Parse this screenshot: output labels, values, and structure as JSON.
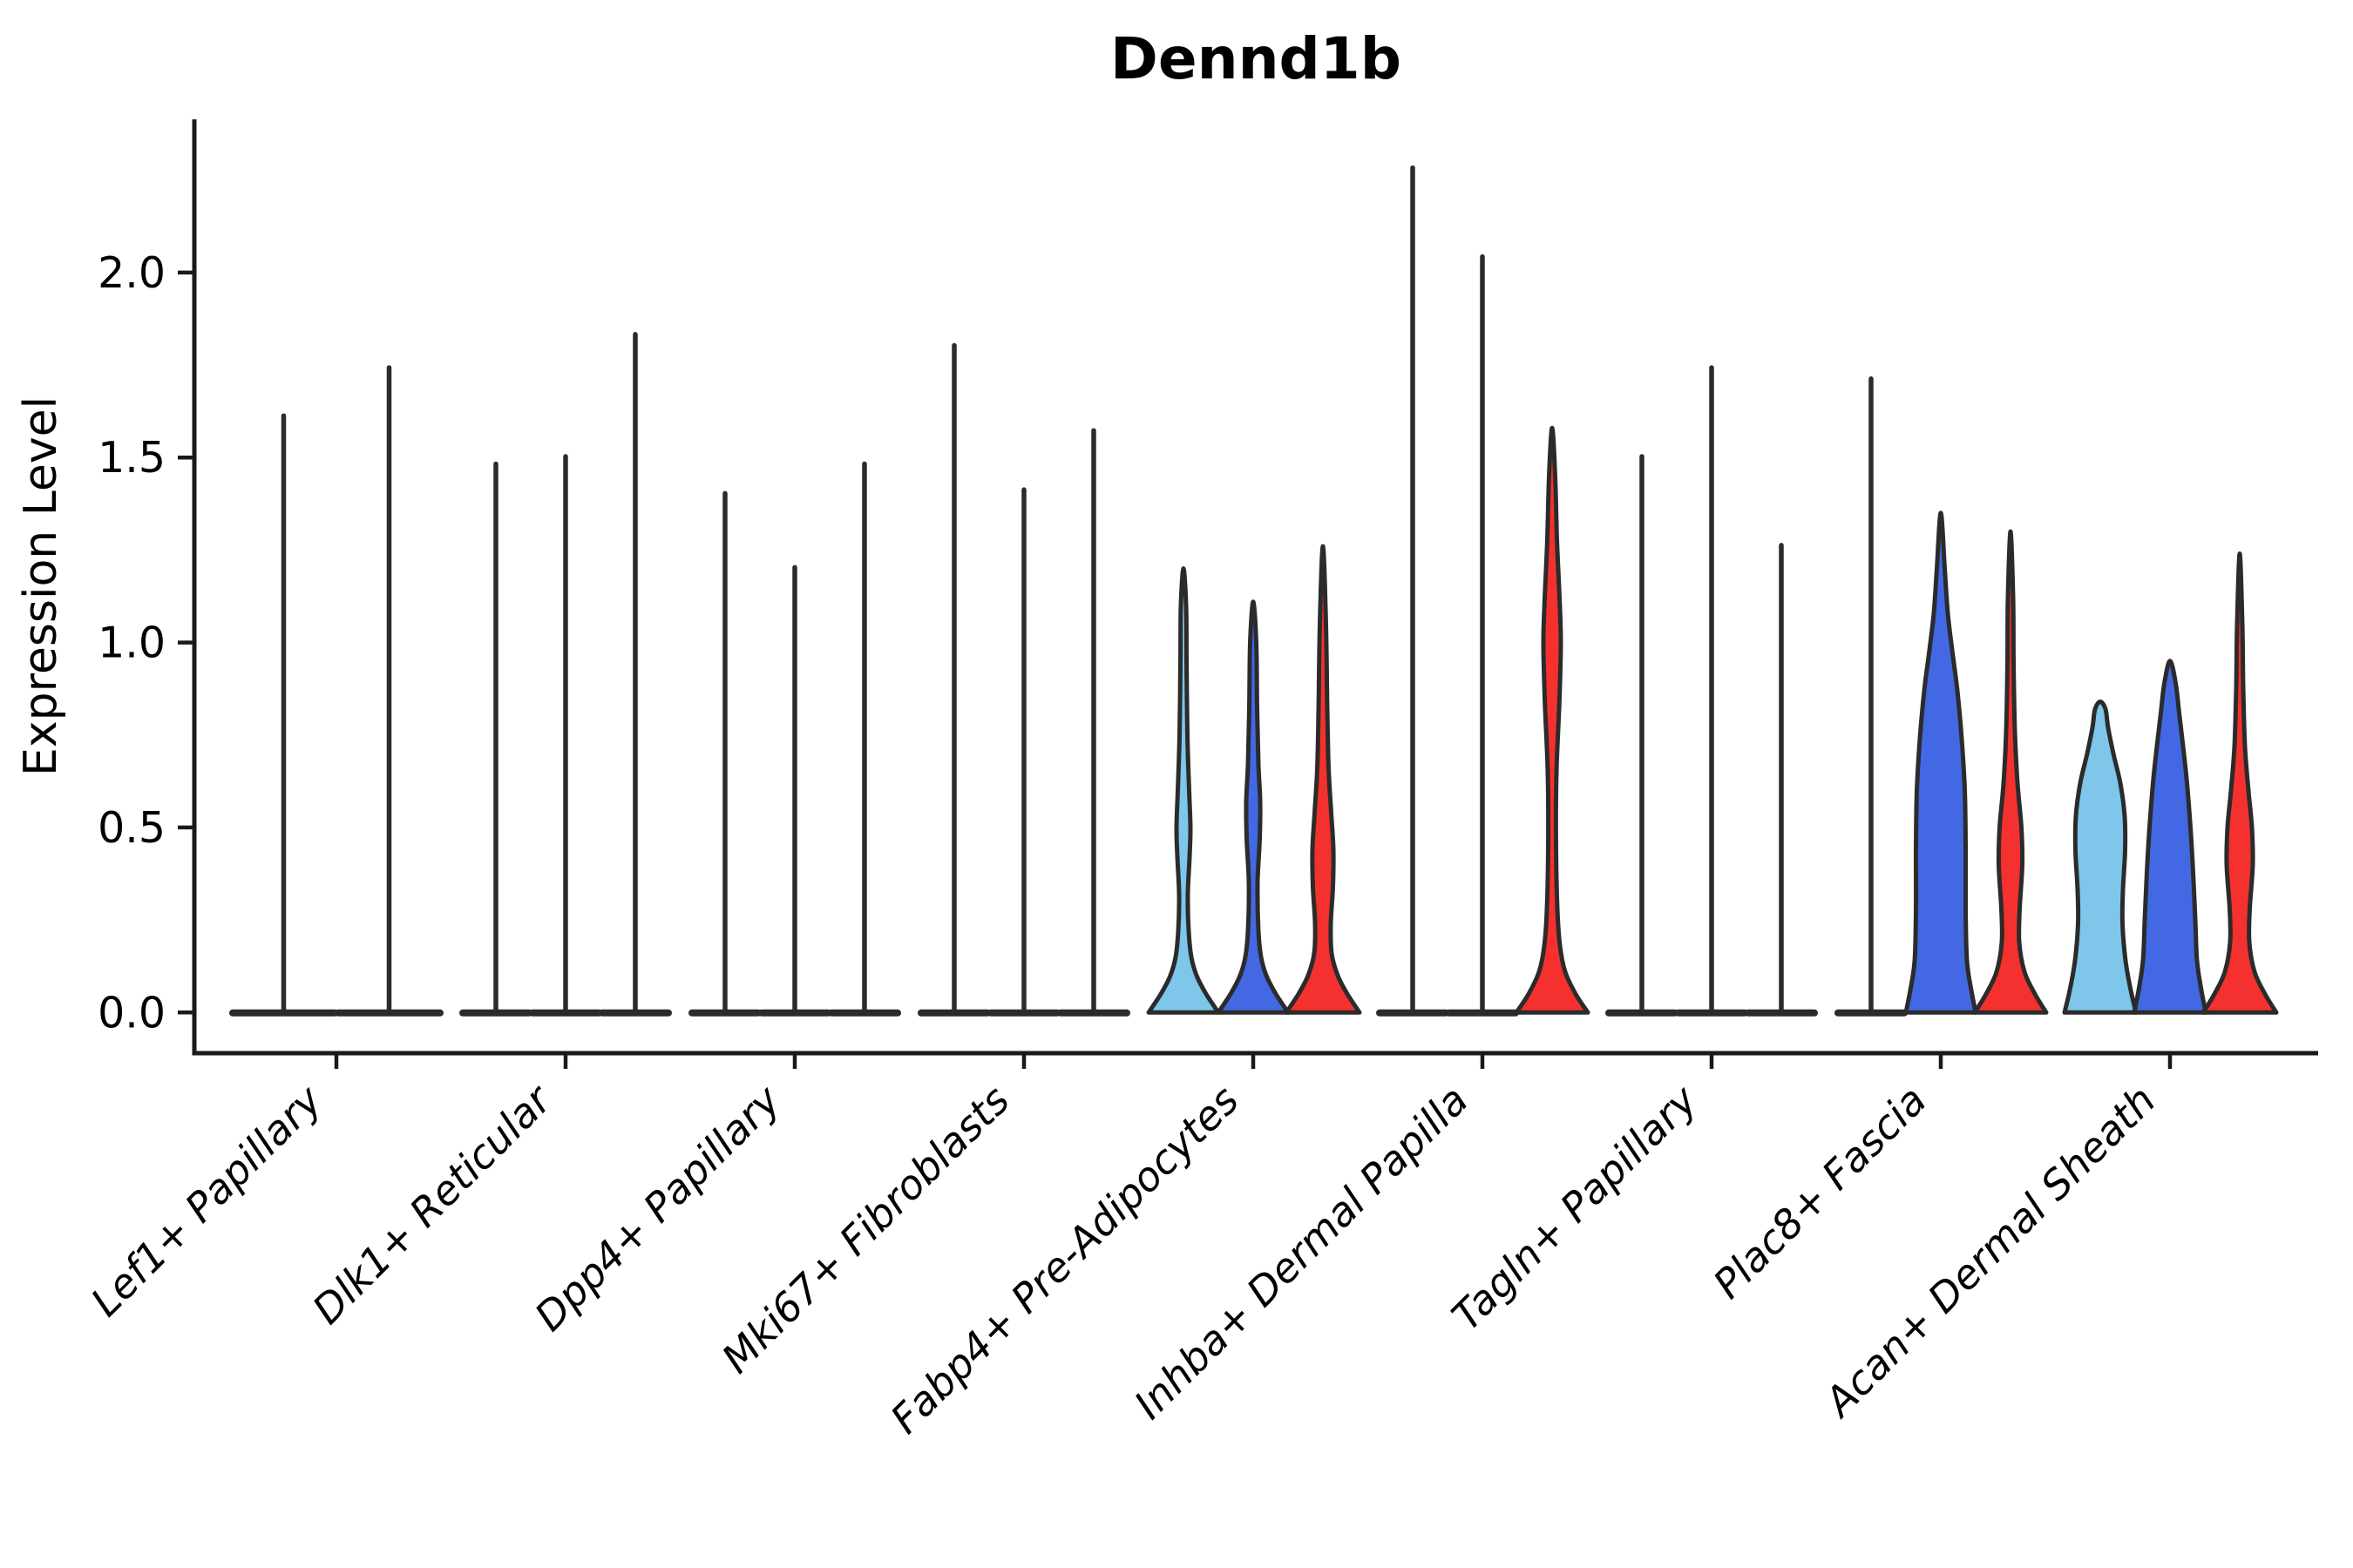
{
  "title": "Dennd1b",
  "colors": {
    "background": "#ffffff",
    "axis": "#1a1a1a",
    "text": "#000000",
    "violin_outline": "#2b2b2b",
    "light_blue": "#7ec6ea",
    "blue": "#4268e4",
    "red": "#f4312e"
  },
  "chart_data": {
    "type": "violin",
    "title": "Dennd1b",
    "xlabel": "",
    "ylabel": "Expression Level",
    "ylim": [
      -0.11,
      2.41
    ],
    "grid": false,
    "legend": "none",
    "yticks": [
      {
        "value": 0.0,
        "label": "0.0"
      },
      {
        "value": 0.5,
        "label": "0.5"
      },
      {
        "value": 1.0,
        "label": "1.0"
      },
      {
        "value": 1.5,
        "label": "1.5"
      },
      {
        "value": 2.0,
        "label": "2.0"
      }
    ],
    "categories": [
      "Lef1+ Papillary",
      "Dlk1+ Reticular",
      "Dpp4+ Papillary",
      "Mki67+ Fibroblasts",
      "Fabp4+ Pre-Adipocytes",
      "Inhba+ Dermal Papilla",
      "Tagln+ Papillary",
      "Plac8+ Fascia",
      "Acan+ Dermal Sheath"
    ],
    "note": "Most violins collapse to a flat base at 0 with a thin spike to the max expression value; style=spike means near-zero-width dark violin, style=body means visible colored violin. profile = [expression_value, half_width_px] pairs.",
    "groups": [
      {
        "category": "Lef1+ Papillary",
        "violins": [
          {
            "style": "spike",
            "max": 1.62
          },
          {
            "style": "spike",
            "max": 1.75
          }
        ]
      },
      {
        "category": "Dlk1+ Reticular",
        "violins": [
          {
            "style": "spike",
            "max": 1.49
          },
          {
            "style": "spike",
            "max": 1.51
          },
          {
            "style": "spike",
            "max": 1.84
          }
        ]
      },
      {
        "category": "Dpp4+ Papillary",
        "violins": [
          {
            "style": "spike",
            "max": 1.41
          },
          {
            "style": "spike",
            "max": 1.21
          },
          {
            "style": "spike",
            "max": 1.49
          }
        ]
      },
      {
        "category": "Mki67+ Fibroblasts",
        "violins": [
          {
            "style": "spike",
            "max": 1.81
          },
          {
            "style": "spike",
            "max": 1.42
          },
          {
            "style": "spike",
            "max": 1.58
          }
        ]
      },
      {
        "category": "Fabp4+ Pre-Adipocytes",
        "violins": [
          {
            "style": "body",
            "color_key": "light_blue",
            "max": 1.2,
            "profile": [
              [
                0,
                40
              ],
              [
                0.05,
                26
              ],
              [
                0.1,
                15
              ],
              [
                0.15,
                9
              ],
              [
                0.22,
                6
              ],
              [
                0.32,
                5
              ],
              [
                0.42,
                7
              ],
              [
                0.5,
                8
              ],
              [
                0.6,
                6.5
              ],
              [
                0.75,
                4.5
              ],
              [
                0.95,
                3.5
              ],
              [
                1.1,
                3
              ],
              [
                1.2,
                0
              ]
            ]
          },
          {
            "style": "body",
            "color_key": "blue",
            "max": 1.11,
            "profile": [
              [
                0,
                40
              ],
              [
                0.05,
                26
              ],
              [
                0.1,
                15
              ],
              [
                0.15,
                9
              ],
              [
                0.22,
                6
              ],
              [
                0.35,
                5
              ],
              [
                0.47,
                7.5
              ],
              [
                0.57,
                8
              ],
              [
                0.67,
                6
              ],
              [
                0.82,
                4.5
              ],
              [
                1.0,
                3.5
              ],
              [
                1.11,
                0
              ]
            ]
          },
          {
            "style": "body",
            "color_key": "red",
            "max": 1.26,
            "profile": [
              [
                0,
                42
              ],
              [
                0.05,
                28
              ],
              [
                0.1,
                17
              ],
              [
                0.16,
                10
              ],
              [
                0.24,
                9
              ],
              [
                0.34,
                11.5
              ],
              [
                0.44,
                12
              ],
              [
                0.54,
                9.5
              ],
              [
                0.66,
                6.5
              ],
              [
                0.82,
                5
              ],
              [
                1.05,
                3.5
              ],
              [
                1.26,
                0
              ]
            ]
          }
        ]
      },
      {
        "category": "Inhba+ Dermal Papilla",
        "violins": [
          {
            "style": "spike",
            "max": 2.29
          },
          {
            "style": "spike",
            "max": 2.05
          },
          {
            "style": "body",
            "color_key": "red",
            "max": 1.58,
            "profile": [
              [
                0,
                41
              ],
              [
                0.05,
                27
              ],
              [
                0.11,
                15
              ],
              [
                0.18,
                9
              ],
              [
                0.28,
                6
              ],
              [
                0.45,
                4.5
              ],
              [
                0.65,
                5
              ],
              [
                0.85,
                8.5
              ],
              [
                1.0,
                10
              ],
              [
                1.12,
                8.5
              ],
              [
                1.28,
                5.5
              ],
              [
                1.45,
                3.5
              ],
              [
                1.58,
                0
              ]
            ]
          }
        ]
      },
      {
        "category": "Tagln+ Papillary",
        "violins": [
          {
            "style": "spike",
            "max": 1.51
          },
          {
            "style": "spike",
            "max": 1.75
          },
          {
            "style": "spike",
            "max": 1.27
          }
        ]
      },
      {
        "category": "Plac8+ Fascia",
        "violins": [
          {
            "style": "spike",
            "max": 1.72
          },
          {
            "style": "body",
            "color_key": "blue",
            "max": 1.35,
            "profile": [
              [
                0,
                40
              ],
              [
                0.06,
                35
              ],
              [
                0.14,
                30
              ],
              [
                0.28,
                28.5
              ],
              [
                0.45,
                28.5
              ],
              [
                0.6,
                27.5
              ],
              [
                0.74,
                24
              ],
              [
                0.87,
                19
              ],
              [
                0.98,
                13
              ],
              [
                1.08,
                8
              ],
              [
                1.2,
                4.5
              ],
              [
                1.35,
                0
              ]
            ]
          },
          {
            "style": "body",
            "color_key": "red",
            "max": 1.3,
            "profile": [
              [
                0,
                41
              ],
              [
                0.05,
                28
              ],
              [
                0.11,
                16
              ],
              [
                0.19,
                10
              ],
              [
                0.28,
                10.5
              ],
              [
                0.4,
                13.5
              ],
              [
                0.5,
                12.5
              ],
              [
                0.62,
                8
              ],
              [
                0.76,
                5
              ],
              [
                0.95,
                3.5
              ],
              [
                1.12,
                3
              ],
              [
                1.3,
                0
              ]
            ]
          }
        ]
      },
      {
        "category": "Acan+ Dermal Sheath",
        "violins": [
          {
            "style": "body",
            "color_key": "light_blue",
            "max": 0.84,
            "profile": [
              [
                0,
                41
              ],
              [
                0.06,
                35
              ],
              [
                0.14,
                29
              ],
              [
                0.24,
                25.5
              ],
              [
                0.33,
                26
              ],
              [
                0.44,
                28.5
              ],
              [
                0.53,
                28
              ],
              [
                0.62,
                23
              ],
              [
                0.7,
                15
              ],
              [
                0.77,
                9
              ],
              [
                0.82,
                6
              ],
              [
                0.84,
                0
              ]
            ]
          },
          {
            "style": "body",
            "color_key": "blue",
            "max": 0.95,
            "profile": [
              [
                0,
                41
              ],
              [
                0.06,
                36
              ],
              [
                0.14,
                31
              ],
              [
                0.25,
                29
              ],
              [
                0.38,
                26.5
              ],
              [
                0.5,
                23.5
              ],
              [
                0.62,
                19.5
              ],
              [
                0.72,
                15
              ],
              [
                0.81,
                10.5
              ],
              [
                0.89,
                6.5
              ],
              [
                0.95,
                0
              ]
            ]
          },
          {
            "style": "body",
            "color_key": "red",
            "max": 1.24,
            "profile": [
              [
                0,
                42
              ],
              [
                0.05,
                29
              ],
              [
                0.11,
                17
              ],
              [
                0.19,
                11
              ],
              [
                0.28,
                11.5
              ],
              [
                0.4,
                15
              ],
              [
                0.5,
                14
              ],
              [
                0.6,
                10
              ],
              [
                0.72,
                6
              ],
              [
                0.88,
                4
              ],
              [
                1.05,
                3
              ],
              [
                1.24,
                0
              ]
            ]
          }
        ]
      }
    ]
  }
}
